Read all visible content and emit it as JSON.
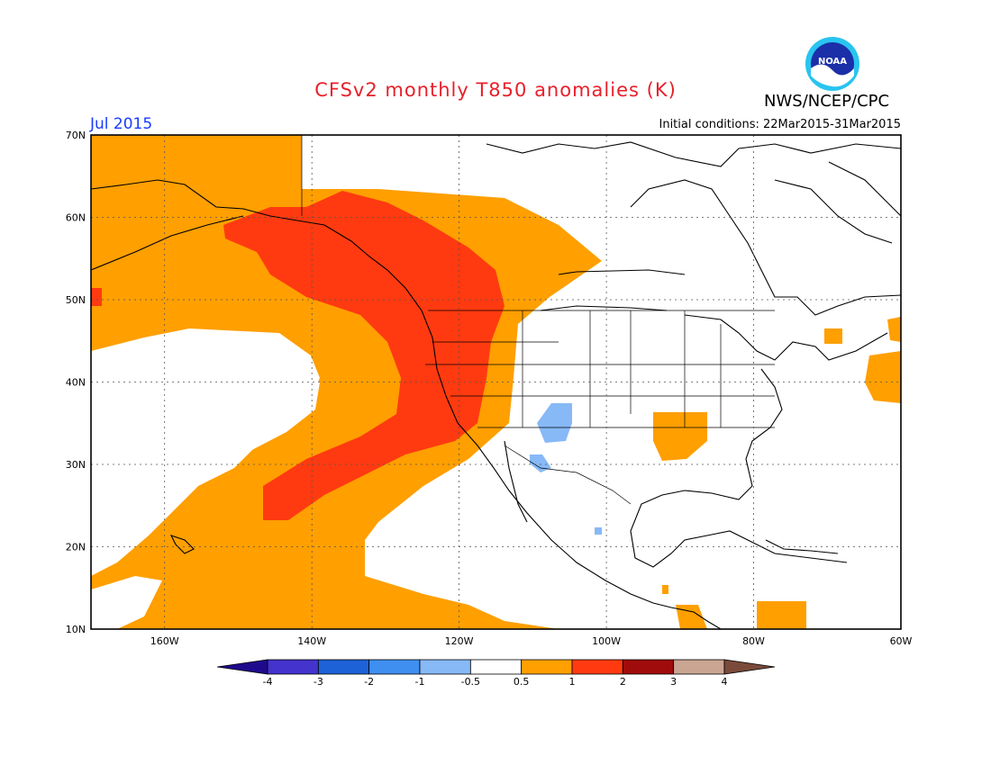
{
  "header": {
    "title": "CFSv2 monthly T850 anomalies (K)",
    "agency": "NWS/NCEP/CPC",
    "logo_text": "NOAA",
    "period": "Jul 2015",
    "initial_conditions": "Initial conditions: 22Mar2015-31Mar2015"
  },
  "map": {
    "lat_labels": [
      "70N",
      "60N",
      "50N",
      "40N",
      "30N",
      "20N",
      "10N"
    ],
    "lon_labels": [
      "160W",
      "140W",
      "120W",
      "100W",
      "80W",
      "60W"
    ],
    "colors": {
      "ocean_blank": "#ffffff",
      "anom_0_5_to_1": "#ff9f00",
      "anom_1_to_2": "#ff3a10",
      "anom_neg_1_to_neg_0_5": "#87b9f7",
      "coast": "#000000"
    }
  },
  "colorbar": {
    "tick_labels": [
      "-4",
      "-3",
      "-2",
      "-1",
      "-0.5",
      "0.5",
      "1",
      "2",
      "3",
      "4"
    ],
    "colors": [
      "#1e0a8c",
      "#4433cc",
      "#1d62d6",
      "#3f8ff0",
      "#87b9f7",
      "#ffffff",
      "#ff9f00",
      "#ff3a10",
      "#a00c0c",
      "#c9a592",
      "#7a4a3a"
    ]
  }
}
